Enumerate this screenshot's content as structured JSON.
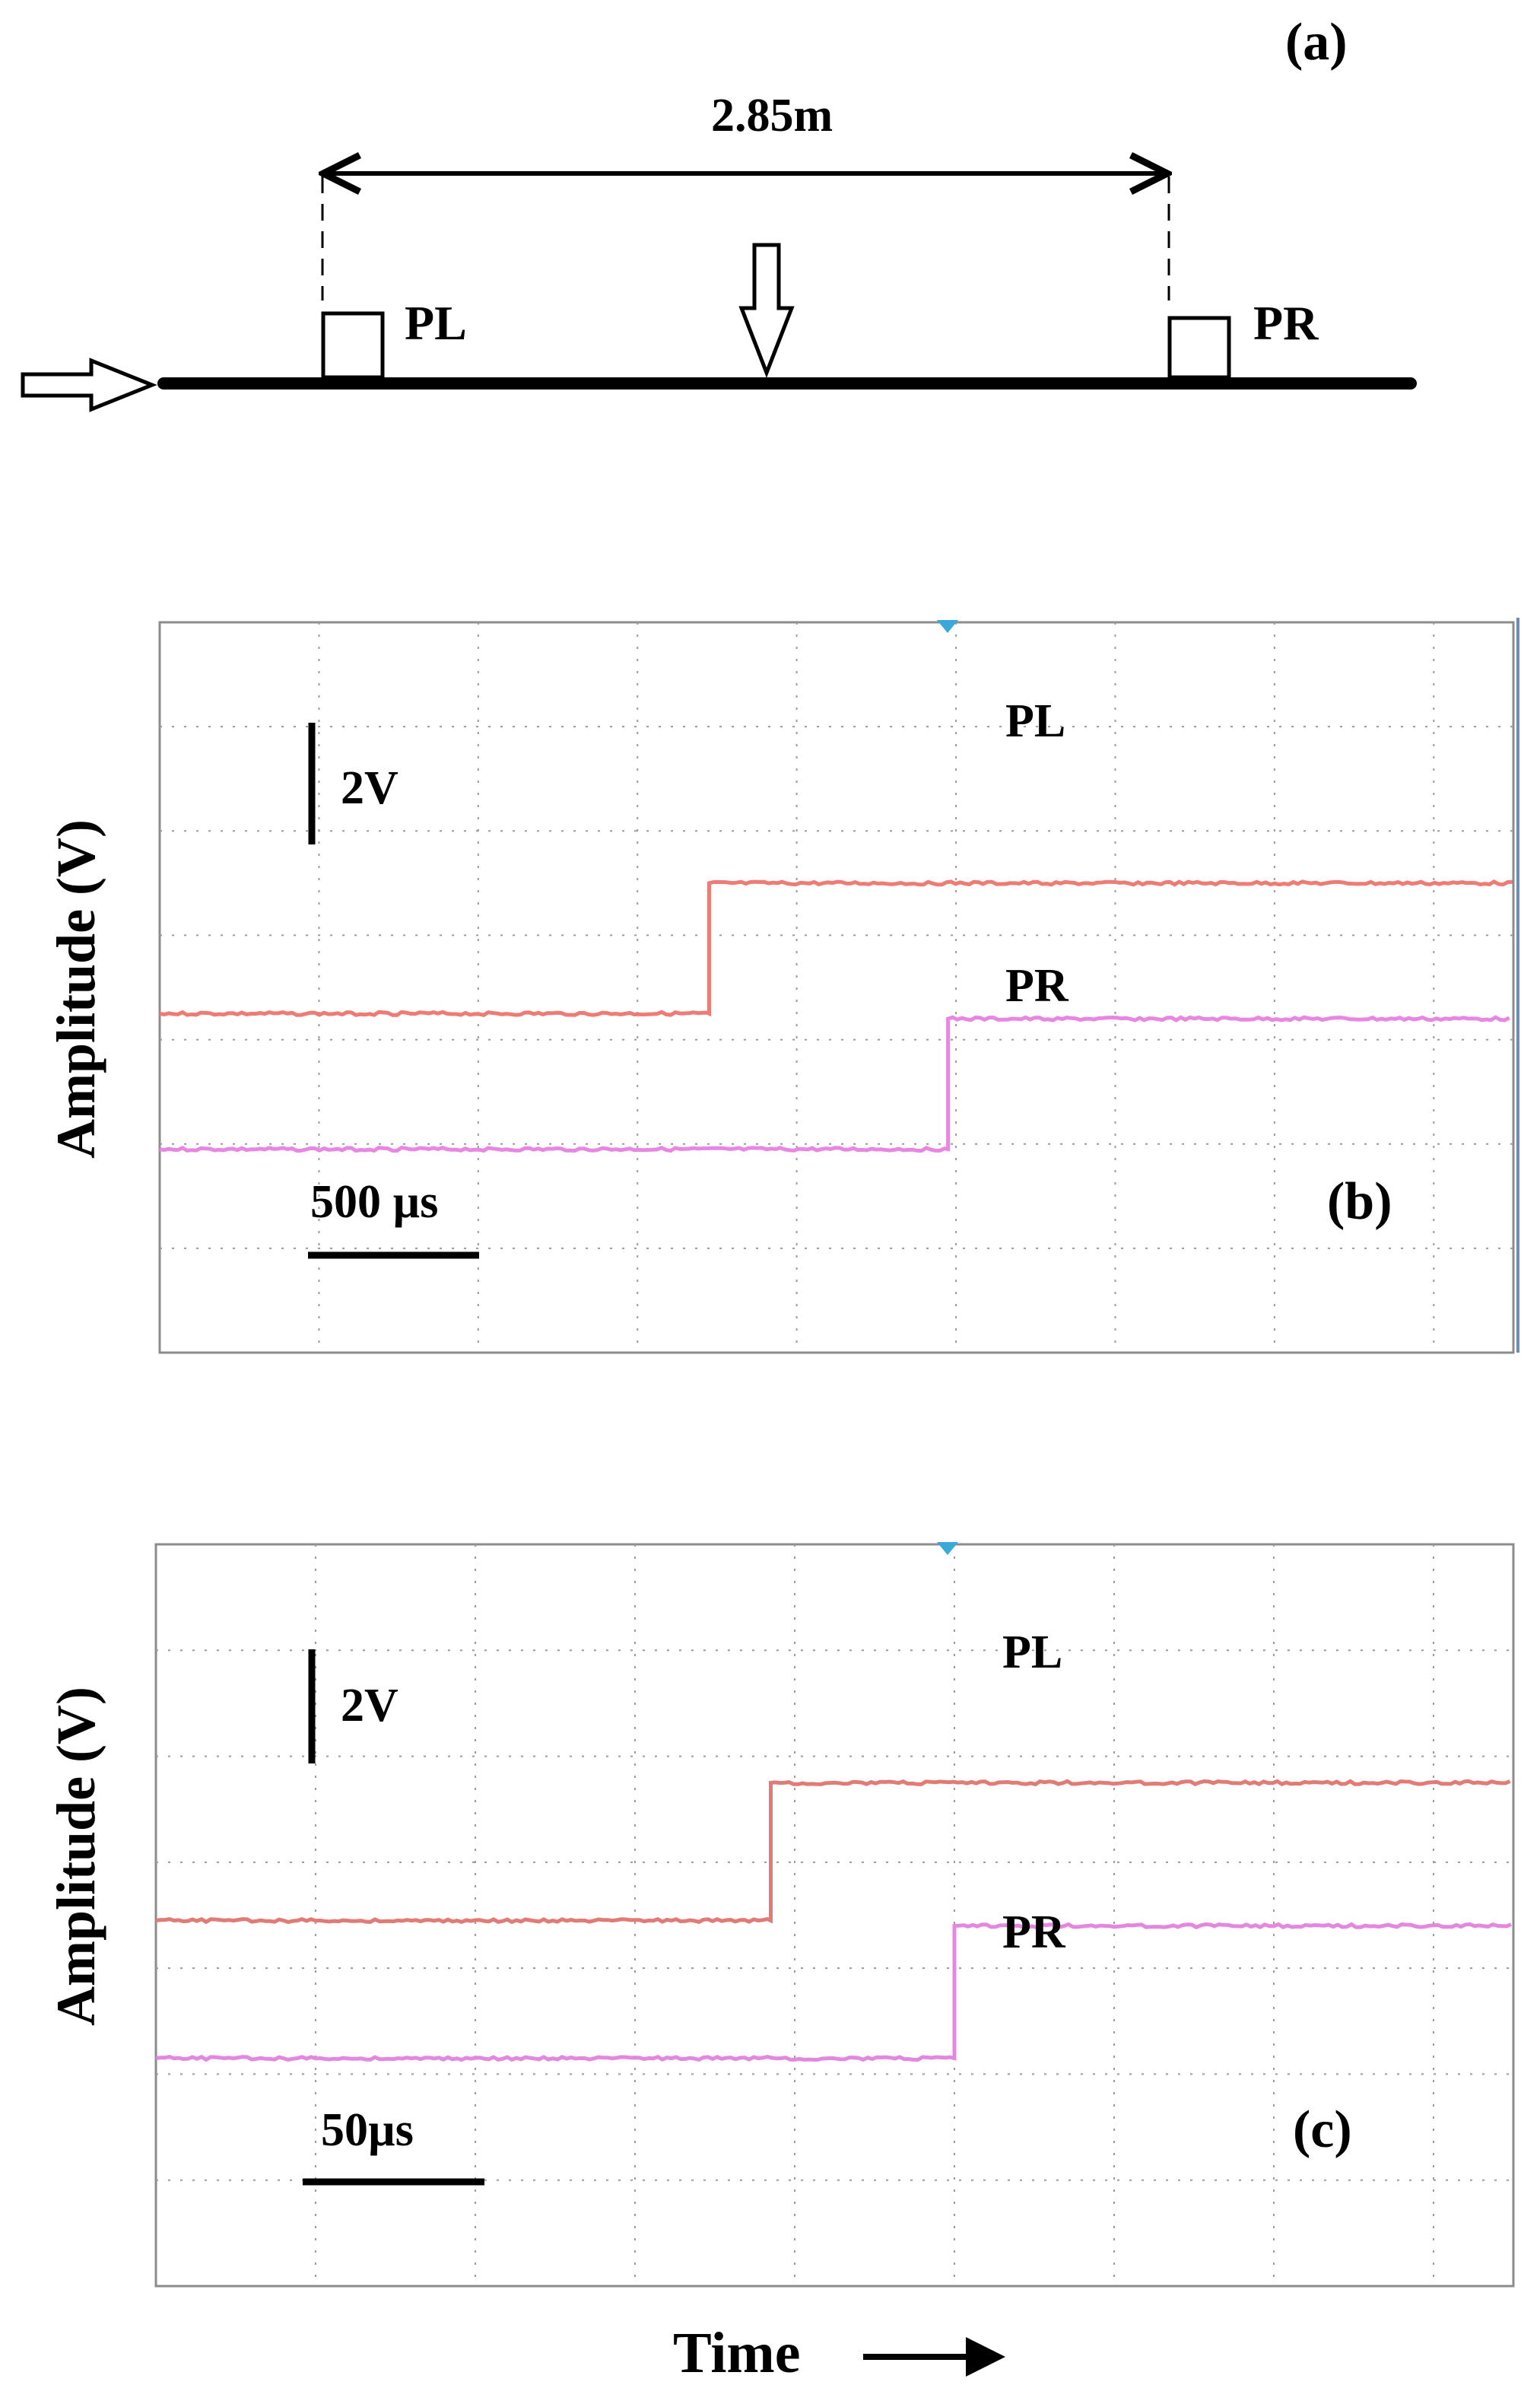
{
  "panel_a": {
    "label": "(a)",
    "distance_label": "2.85m",
    "sensor_left": "PL",
    "sensor_right": "PR"
  },
  "chart_data": [
    {
      "type": "line",
      "panel": "(b)",
      "title": "",
      "xlabel": "Time",
      "ylabel": "Amplitude (V)",
      "grid": true,
      "scale_bars": {
        "voltage": "2V",
        "time": "500 µs"
      },
      "x_divisions": 8.5,
      "y_divisions": 7,
      "series": [
        {
          "name": "PL",
          "color": "#ee7b74",
          "levels": [
            -0.5,
            2.0
          ],
          "step_at_div": 3.45
        },
        {
          "name": "PR",
          "color": "#e886e4",
          "levels": [
            -3.1,
            -0.6
          ],
          "step_at_div": 4.95
        }
      ]
    },
    {
      "type": "line",
      "panel": "(c)",
      "title": "",
      "xlabel": "Time",
      "ylabel": "Amplitude (V)",
      "grid": true,
      "scale_bars": {
        "voltage": "2V",
        "time": "50µs"
      },
      "x_divisions": 8.5,
      "y_divisions": 7,
      "series": [
        {
          "name": "PL",
          "color": "#e17b76",
          "levels": [
            -0.1,
            2.5
          ],
          "step_at_div": 3.85
        },
        {
          "name": "PR",
          "color": "#e488df",
          "levels": [
            -2.7,
            -0.2
          ],
          "step_at_div": 5.0
        }
      ]
    }
  ],
  "colors": {
    "marker": "#3aa8d8",
    "frame": "#8c8c8c",
    "grid": "#9a9a9a"
  }
}
